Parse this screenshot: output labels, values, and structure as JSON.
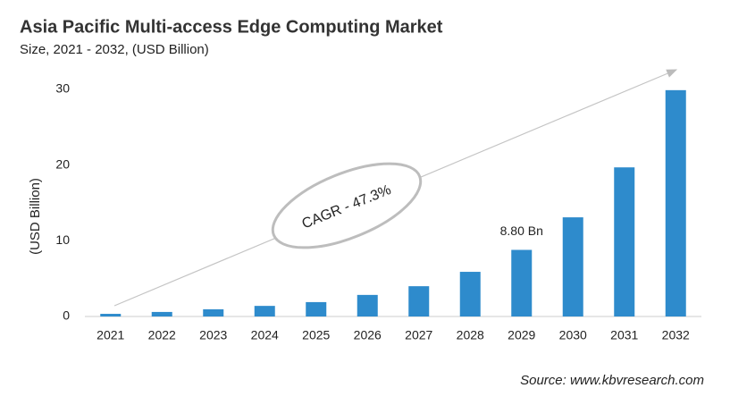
{
  "chart_data": {
    "type": "bar",
    "title": "Asia Pacific Multi-access Edge Computing Market",
    "subtitle": "Size, 2021 - 2032, (USD Billion)",
    "y_label": "(USD Billion)",
    "categories": [
      "2021",
      "2022",
      "2023",
      "2024",
      "2025",
      "2026",
      "2027",
      "2028",
      "2029",
      "2030",
      "2031",
      "2032"
    ],
    "values": [
      0.35,
      0.6,
      0.95,
      1.4,
      1.9,
      2.85,
      4.0,
      5.9,
      8.8,
      13.1,
      19.7,
      29.9
    ],
    "value_labels": [
      null,
      null,
      null,
      null,
      null,
      null,
      null,
      null,
      "8.80 Bn",
      null,
      null,
      null
    ],
    "color": "#2e8bcc",
    "ylim": [
      0,
      30
    ],
    "yticks": [
      0,
      10,
      20,
      30
    ],
    "grid": false,
    "annotation": "CAGR - 47.3%",
    "source": "Source: www.kbvresearch.com"
  }
}
